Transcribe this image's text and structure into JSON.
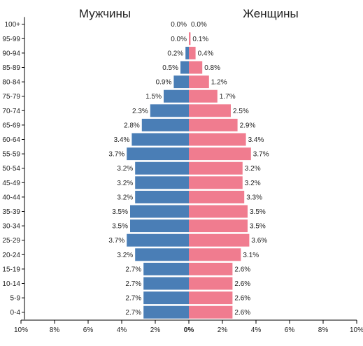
{
  "chart_data": {
    "type": "bar",
    "orientation": "horizontal-butterfly",
    "legend": {
      "left_label": "Мужчины",
      "right_label": "Женщины"
    },
    "colors": {
      "male": "#4a7eb6",
      "female": "#f07c8f",
      "axis": "#000000",
      "text": "#222222"
    },
    "categories": [
      "0-4",
      "5-9",
      "10-14",
      "15-19",
      "20-24",
      "25-29",
      "30-34",
      "35-39",
      "40-44",
      "45-49",
      "50-54",
      "55-59",
      "60-64",
      "65-69",
      "70-74",
      "75-79",
      "80-84",
      "85-89",
      "90-94",
      "95-99",
      "100+"
    ],
    "series": [
      {
        "name": "Мужчины",
        "values": [
          2.7,
          2.7,
          2.7,
          2.7,
          3.2,
          3.7,
          3.5,
          3.5,
          3.2,
          3.2,
          3.2,
          3.7,
          3.4,
          2.8,
          2.3,
          1.5,
          0.9,
          0.5,
          0.2,
          0.0,
          0.0
        ],
        "labels": [
          "2.7%",
          "2.7%",
          "2.7%",
          "2.7%",
          "3.2%",
          "3.7%",
          "3.5%",
          "3.5%",
          "3.2%",
          "3.2%",
          "3.2%",
          "3.7%",
          "3.4%",
          "2.8%",
          "2.3%",
          "1.5%",
          "0.9%",
          "0.5%",
          "0.2%",
          "0.0%",
          "0.0%"
        ]
      },
      {
        "name": "Женщины",
        "values": [
          2.6,
          2.6,
          2.6,
          2.6,
          3.1,
          3.6,
          3.5,
          3.5,
          3.3,
          3.2,
          3.2,
          3.7,
          3.4,
          2.9,
          2.5,
          1.7,
          1.2,
          0.8,
          0.4,
          0.1,
          0.0
        ],
        "labels": [
          "2.6%",
          "2.6%",
          "2.6%",
          "2.6%",
          "3.1%",
          "3.6%",
          "3.5%",
          "3.5%",
          "3.3%",
          "3.2%",
          "3.2%",
          "3.7%",
          "3.4%",
          "2.9%",
          "2.5%",
          "1.7%",
          "1.2%",
          "0.8%",
          "0.4%",
          "0.1%",
          "0.0%"
        ]
      }
    ],
    "xlim": [
      -10,
      10
    ],
    "ticks": [
      -10,
      -8,
      -6,
      -4,
      -2,
      0,
      2,
      4,
      6,
      8,
      10
    ],
    "tick_labels": [
      "10%",
      "8%",
      "6%",
      "4%",
      "2%",
      "0%",
      "2%",
      "4%",
      "6%",
      "8%",
      "10%"
    ],
    "grid": false
  }
}
